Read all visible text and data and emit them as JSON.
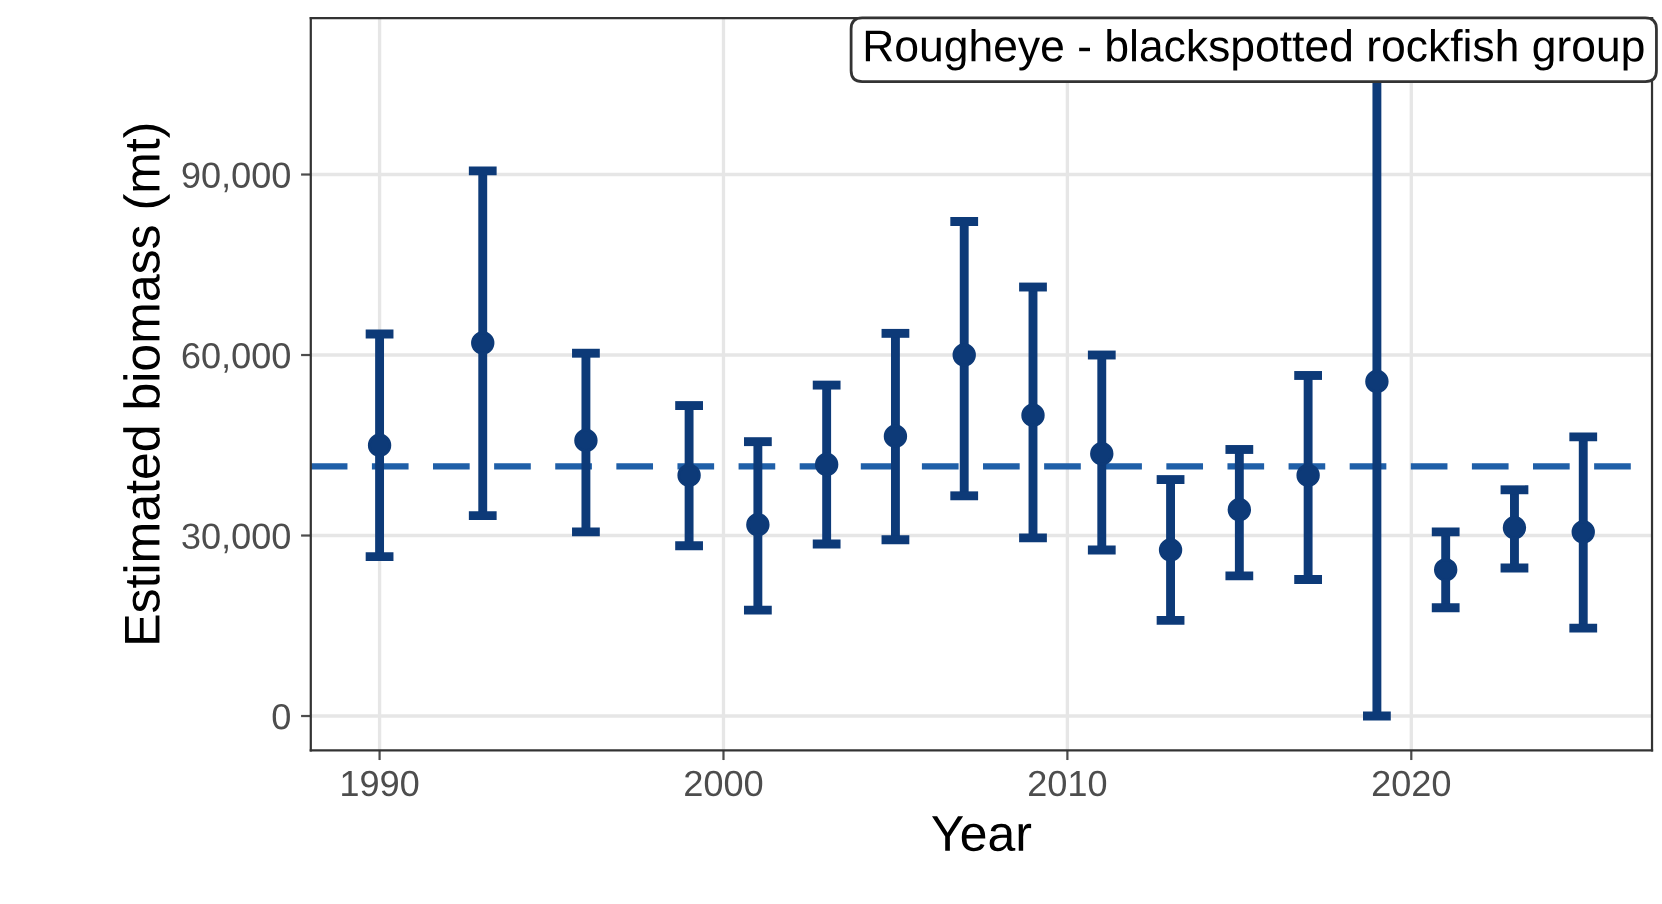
{
  "chart_data": {
    "type": "scatter",
    "title": "Rougheye - blackspotted rockfish group",
    "xlabel": "Year",
    "ylabel": "Estimated biomass (mt)",
    "x": [
      1990,
      1993,
      1996,
      1999,
      2001,
      2003,
      2005,
      2007,
      2009,
      2011,
      2013,
      2015,
      2017,
      2019,
      2021,
      2023,
      2025
    ],
    "series": [
      {
        "color": "#0d3a78",
        "values": [
          45000,
          62000,
          45800,
          40000,
          31800,
          41800,
          46500,
          60000,
          50000,
          43600,
          27600,
          34300,
          40000,
          55600,
          24300,
          31300,
          30600
        ],
        "errors": [
          [
            26500,
            63500
          ],
          [
            33300,
            90600
          ],
          [
            30600,
            60300
          ],
          [
            28300,
            51600
          ],
          [
            17600,
            45600
          ],
          [
            28600,
            55000
          ],
          [
            29300,
            63600
          ],
          [
            36600,
            82200
          ],
          [
            29600,
            71300
          ],
          [
            27600,
            60000
          ],
          [
            15900,
            39300
          ],
          [
            23300,
            44300
          ],
          [
            22700,
            56600
          ],
          [
            0,
            116000
          ],
          [
            18000,
            30600
          ],
          [
            24600,
            37600
          ],
          [
            14600,
            46400
          ]
        ]
      }
    ],
    "ref_lines": [
      {
        "axis": "y",
        "value": 41500,
        "color": "#1f5fa8",
        "line_style": "dashed"
      }
    ],
    "xlim": [
      1988,
      2027
    ],
    "ylim": [
      -5700,
      116000
    ],
    "xticks": [
      1990,
      2000,
      2010,
      2020
    ],
    "yticks": [
      {
        "value": 0,
        "label": "0"
      },
      {
        "value": 30000,
        "label": "30,000"
      },
      {
        "value": 60000,
        "label": "60,000"
      },
      {
        "value": 90000,
        "label": "90,000"
      }
    ],
    "grid": true,
    "marker": "circle"
  }
}
